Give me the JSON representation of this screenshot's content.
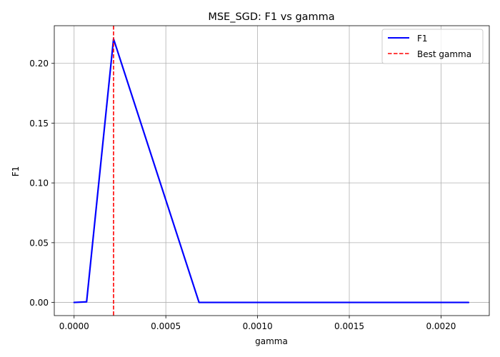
{
  "chart_data": {
    "type": "line",
    "title": "MSE_SGD: F1 vs gamma",
    "xlabel": "gamma",
    "ylabel": "F1",
    "xlim": [
      -0.000108,
      0.002263
    ],
    "ylim": [
      -0.011,
      0.2315
    ],
    "xticks": [
      {
        "value": 0.0,
        "label": "0.0000"
      },
      {
        "value": 0.0005,
        "label": "0.0005"
      },
      {
        "value": 0.001,
        "label": "0.0010"
      },
      {
        "value": 0.0015,
        "label": "0.0015"
      },
      {
        "value": 0.002,
        "label": "0.0020"
      }
    ],
    "yticks": [
      {
        "value": 0.0,
        "label": "0.00"
      },
      {
        "value": 0.05,
        "label": "0.05"
      },
      {
        "value": 0.1,
        "label": "0.10"
      },
      {
        "value": 0.15,
        "label": "0.15"
      },
      {
        "value": 0.2,
        "label": "0.20"
      }
    ],
    "grid": true,
    "legend_position": "top-right",
    "series": [
      {
        "name": "F1",
        "color": "#0000ff",
        "style": "solid",
        "x": [
          0.0,
          6.81e-05,
          0.000215,
          0.000681,
          0.00215
        ],
        "y": [
          0.0,
          0.0005,
          0.2205,
          0.0,
          0.0
        ]
      }
    ],
    "vlines": [
      {
        "name": "Best gamma",
        "x": 0.000215,
        "color": "#ff0000",
        "style": "dashed"
      }
    ]
  }
}
